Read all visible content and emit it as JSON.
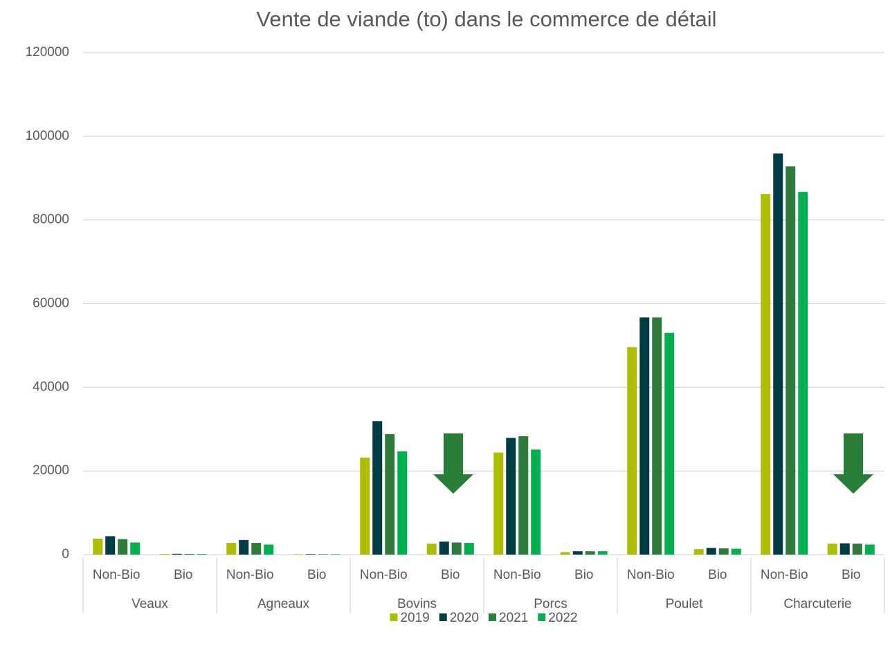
{
  "chart_data": {
    "type": "bar",
    "title": "Vente de viande (to) dans le commerce de détail",
    "categories": [
      "Non-Bio",
      "Bio",
      "Non-Bio",
      "Bio",
      "Non-Bio",
      "Bio",
      "Non-Bio",
      "Bio",
      "Non-Bio",
      "Bio",
      "Non-Bio",
      "Bio"
    ],
    "groups": [
      "Veaux",
      "Agneaux",
      "Bovins",
      "Porcs",
      "Poulet",
      "Charcuterie"
    ],
    "series": [
      {
        "name": "2019",
        "color": "#afbd00",
        "values": [
          3800,
          150,
          2800,
          100,
          23200,
          2600,
          24400,
          600,
          49600,
          1300,
          86200,
          2600
        ]
      },
      {
        "name": "2020",
        "color": "#003c43",
        "values": [
          4400,
          200,
          3500,
          120,
          31900,
          3100,
          27900,
          800,
          56700,
          1600,
          95900,
          2700
        ]
      },
      {
        "name": "2021",
        "color": "#2e7b3c",
        "values": [
          3700,
          180,
          2800,
          110,
          28800,
          2900,
          28300,
          800,
          56700,
          1500,
          92800,
          2600
        ]
      },
      {
        "name": "2022",
        "color": "#00b050",
        "values": [
          2900,
          150,
          2400,
          100,
          24700,
          2800,
          25100,
          800,
          53000,
          1400,
          86700,
          2400
        ]
      }
    ],
    "ylim": [
      0,
      120000
    ],
    "yticks": [
      0,
      20000,
      40000,
      60000,
      80000,
      100000,
      120000
    ],
    "grid": true,
    "legend": "bottom"
  }
}
